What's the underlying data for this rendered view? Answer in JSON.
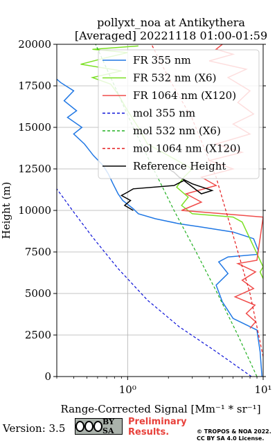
{
  "chart_data": {
    "type": "line",
    "title": [
      "pollyxt_noa at Antikythera",
      "[Averaged] 20221118 01:00-01:59"
    ],
    "xlabel": "Range-Corrected Signal [Mm⁻¹ * sr⁻¹]",
    "ylabel": "Height (m)",
    "xscale": "log",
    "xlim": [
      0.3,
      10
    ],
    "ylim": [
      0,
      20000
    ],
    "xticks": [
      {
        "value": 1,
        "label": "10⁰"
      },
      {
        "value": 10,
        "label": "10¹"
      }
    ],
    "yticks": [
      0,
      2500,
      5000,
      7500,
      10000,
      12500,
      15000,
      17500,
      20000
    ],
    "yticklabels": [
      "0",
      "2500",
      "5000",
      "7500",
      "10000",
      "12500",
      "15000",
      "17500",
      "20000"
    ],
    "grid": true,
    "legend_position": "top-right",
    "series": [
      {
        "name": "FR 355 nm",
        "color": "#1f77e4",
        "style": "solid",
        "points": [
          [
            9.8,
            0
          ],
          [
            9.5,
            1500
          ],
          [
            9.0,
            2800
          ],
          [
            6.0,
            3500
          ],
          [
            5.0,
            4500
          ],
          [
            4.5,
            5500
          ],
          [
            5.5,
            6200
          ],
          [
            4.7,
            6900
          ],
          [
            5.5,
            7200
          ],
          [
            9.0,
            7350
          ],
          [
            9.2,
            7600
          ],
          [
            8.5,
            8300
          ],
          [
            6.0,
            8700
          ],
          [
            3.5,
            9000
          ],
          [
            2.4,
            9200
          ],
          [
            1.6,
            9500
          ],
          [
            1.2,
            9800
          ],
          [
            1.1,
            10100
          ],
          [
            0.92,
            10600
          ],
          [
            0.85,
            11000
          ],
          [
            0.78,
            11600
          ],
          [
            0.72,
            12200
          ],
          [
            0.66,
            12700
          ],
          [
            0.56,
            13300
          ],
          [
            0.48,
            14000
          ],
          [
            0.4,
            14600
          ],
          [
            0.46,
            15000
          ],
          [
            0.36,
            15600
          ],
          [
            0.42,
            16000
          ],
          [
            0.34,
            16600
          ],
          [
            0.4,
            17200
          ],
          [
            0.32,
            17700
          ],
          [
            0.3,
            17900
          ]
        ]
      },
      {
        "name": "FR 532 nm (X6)",
        "color": "#7be023",
        "style": "solid",
        "points": [
          [
            10,
            5900
          ],
          [
            9.5,
            6300
          ],
          [
            10,
            6600
          ],
          [
            7.0,
            9300
          ],
          [
            6.0,
            9600
          ],
          [
            3.0,
            9800
          ],
          [
            2.5,
            10300
          ],
          [
            2.8,
            10800
          ],
          [
            2.3,
            11400
          ],
          [
            2.6,
            12000
          ],
          [
            3.0,
            12500
          ],
          [
            2.0,
            13300
          ],
          [
            1.4,
            14000
          ],
          [
            1.2,
            15000
          ],
          [
            1.0,
            16000
          ],
          [
            0.85,
            17000
          ],
          [
            0.75,
            17600
          ],
          [
            0.55,
            18000
          ],
          [
            0.9,
            18400
          ],
          [
            0.45,
            18800
          ],
          [
            0.7,
            19200
          ],
          [
            1.0,
            19500
          ],
          [
            0.55,
            19700
          ],
          [
            1.2,
            19900
          ]
        ]
      },
      {
        "name": "FR 1064 nm (X120)",
        "color": "#f04c4a",
        "style": "solid",
        "points": [
          [
            8.0,
            2900
          ],
          [
            8.8,
            3300
          ],
          [
            7.5,
            3800
          ],
          [
            8.7,
            4300
          ],
          [
            6.2,
            4800
          ],
          [
            8.5,
            5300
          ],
          [
            7.0,
            5800
          ],
          [
            8.8,
            6300
          ],
          [
            6.5,
            6800
          ],
          [
            9.0,
            7000
          ],
          [
            10,
            9600
          ],
          [
            5.0,
            9800
          ],
          [
            2.5,
            10000
          ],
          [
            3.5,
            10500
          ],
          [
            2.7,
            11000
          ],
          [
            4.5,
            11500
          ],
          [
            3.5,
            12000
          ],
          [
            6.0,
            12500
          ],
          [
            4.0,
            13000
          ],
          [
            7.0,
            13500
          ],
          [
            4.5,
            14000
          ],
          [
            8.0,
            14600
          ],
          [
            6.0,
            15200
          ],
          [
            8.5,
            15800
          ],
          [
            6.5,
            16500
          ],
          [
            8.0,
            17200
          ],
          [
            5.5,
            18000
          ],
          [
            7.5,
            18500
          ],
          [
            4.0,
            19000
          ],
          [
            6.0,
            19400
          ],
          [
            4.5,
            19700
          ],
          [
            5.0,
            20000
          ]
        ]
      },
      {
        "name": "mol 355 nm",
        "color": "#0a10d8",
        "style": "dashed",
        "points": [
          [
            8.2,
            0
          ],
          [
            4.5,
            1500
          ],
          [
            2.4,
            3000
          ],
          [
            1.4,
            4600
          ],
          [
            0.85,
            6500
          ],
          [
            0.55,
            8400
          ],
          [
            0.4,
            9900
          ],
          [
            0.3,
            11300
          ]
        ]
      },
      {
        "name": "mol 532 nm (X6)",
        "color": "#22b022",
        "style": "dashed",
        "points": [
          [
            9.0,
            0
          ],
          [
            6.5,
            2500
          ],
          [
            4.6,
            5000
          ],
          [
            3.2,
            7500
          ],
          [
            2.2,
            10000
          ],
          [
            1.55,
            12500
          ],
          [
            1.1,
            15000
          ],
          [
            0.8,
            17500
          ],
          [
            0.58,
            20000
          ]
        ]
      },
      {
        "name": "mol 1064 nm (X120)",
        "color": "#e41a1c",
        "style": "dashed",
        "points": [
          [
            10,
            1200
          ],
          [
            8.0,
            5000
          ],
          [
            6.0,
            8500
          ],
          [
            4.5,
            12000
          ],
          [
            3.0,
            15500
          ],
          [
            2.0,
            18000
          ],
          [
            1.5,
            20000
          ]
        ]
      },
      {
        "name": "Reference Height",
        "color": "#000000",
        "style": "solid",
        "points": [
          [
            1.1,
            10000
          ],
          [
            0.95,
            10300
          ],
          [
            1.05,
            10600
          ],
          [
            0.9,
            10900
          ],
          [
            1.0,
            11100
          ],
          [
            1.1,
            11300
          ],
          [
            2.2,
            11500
          ],
          [
            2.6,
            11800
          ],
          [
            3.5,
            11000
          ],
          [
            4.2,
            11200
          ],
          [
            3.0,
            11600
          ],
          [
            2.4,
            12000
          ],
          [
            2.2,
            12300
          ],
          [
            2.0,
            12500
          ]
        ]
      }
    ]
  },
  "footer": {
    "version": "Version: 3.5",
    "cc_label": "BY SA",
    "preliminary_line1": "Preliminary",
    "preliminary_line2": "Results.",
    "copyright_line1": "© TROPOS & NOA 2022.",
    "copyright_line2": "CC BY SA 4.0 License."
  }
}
